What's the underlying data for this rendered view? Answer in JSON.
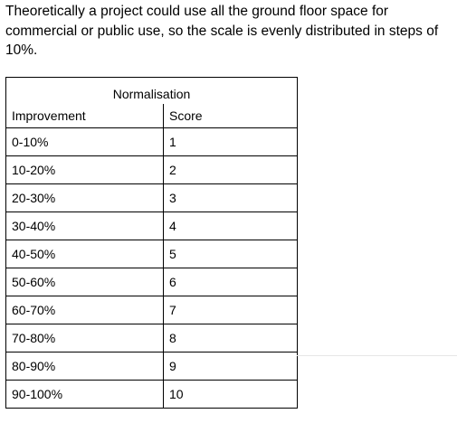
{
  "intro_text": "Theoretically a project could use all the ground floor space for commercial or public use, so the scale is evenly distributed in steps of 10%.",
  "table": {
    "title": "Normalisation",
    "headers": [
      "Improvement",
      "Score"
    ],
    "rows": [
      [
        "0-10%",
        "1"
      ],
      [
        "10-20%",
        "2"
      ],
      [
        "20-30%",
        "3"
      ],
      [
        "30-40%",
        "4"
      ],
      [
        "40-50%",
        "5"
      ],
      [
        "50-60%",
        "6"
      ],
      [
        "60-70%",
        "7"
      ],
      [
        "70-80%",
        "8"
      ],
      [
        "80-90%",
        "9"
      ],
      [
        "90-100%",
        "10"
      ]
    ]
  }
}
